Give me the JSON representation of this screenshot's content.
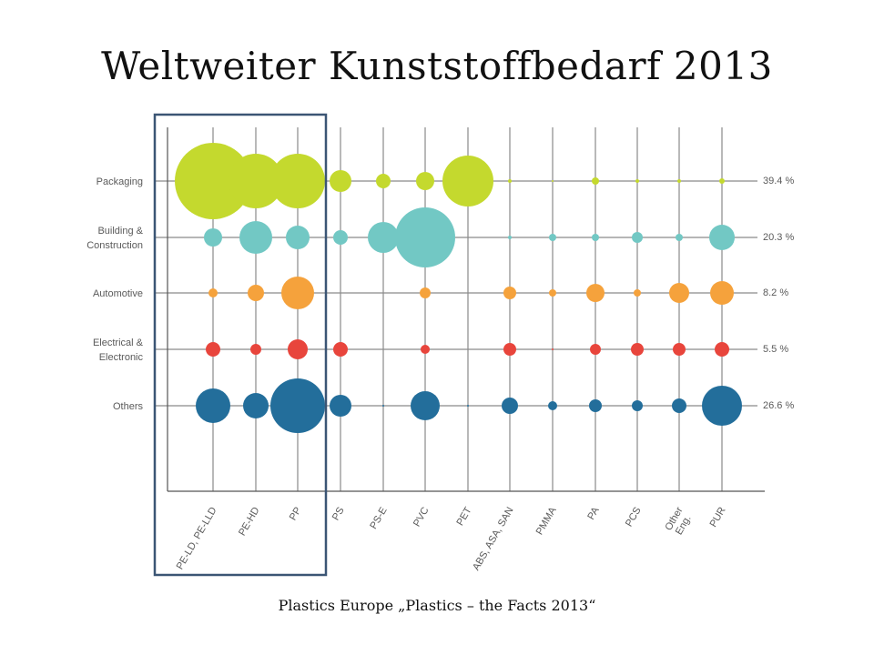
{
  "title": "Weltweiter Kunststoffbedarf 2013",
  "source": "Plastics Europe „Plastics – the Facts 2013“",
  "colors": {
    "Packaging": "#c4d92e",
    "Building & Construction": "#72c8c4",
    "Automotive": "#f5a23c",
    "Electrical & Electronic": "#e8453c",
    "Others": "#236e9b",
    "highlight_box": "#3b5574"
  },
  "chart_data": {
    "type": "scatter",
    "subtype": "bubble-matrix",
    "categories": [
      "PE-LD, PE-LLD",
      "PE-HD",
      "PP",
      "PS",
      "PS-E",
      "PVC",
      "PET",
      "ABS, ASA, SAN",
      "PMMA",
      "PA",
      "PCS",
      "Other Eng.",
      "PUR"
    ],
    "rows": [
      {
        "label": [
          "Packaging"
        ],
        "share": "39.4 %",
        "sizes": [
          42,
          30,
          30,
          12,
          8,
          10,
          28,
          2,
          1,
          4,
          2,
          2,
          3
        ]
      },
      {
        "label": [
          "Building &",
          "Construction"
        ],
        "share": "20.3 %",
        "sizes": [
          10,
          18,
          13,
          8,
          17,
          33,
          0,
          2,
          4,
          4,
          6,
          4,
          14
        ]
      },
      {
        "label": [
          "Automotive"
        ],
        "share": "8.2 %",
        "sizes": [
          5,
          9,
          18,
          0,
          0,
          6,
          0,
          7,
          4,
          10,
          4,
          11,
          13
        ]
      },
      {
        "label": [
          "Electrical &",
          "Electronic"
        ],
        "share": "5.5 %",
        "sizes": [
          8,
          6,
          11,
          8,
          0,
          5,
          0,
          7,
          1,
          6,
          7,
          7,
          8
        ]
      },
      {
        "label": [
          "Others"
        ],
        "share": "26.6 %",
        "sizes": [
          19,
          14,
          30,
          12,
          1,
          16,
          1,
          9,
          5,
          7,
          6,
          8,
          22
        ]
      }
    ],
    "highlighted_categories": [
      "PE-LD, PE-LLD",
      "PE-HD",
      "PP"
    ],
    "grid": true,
    "legend": "none"
  }
}
